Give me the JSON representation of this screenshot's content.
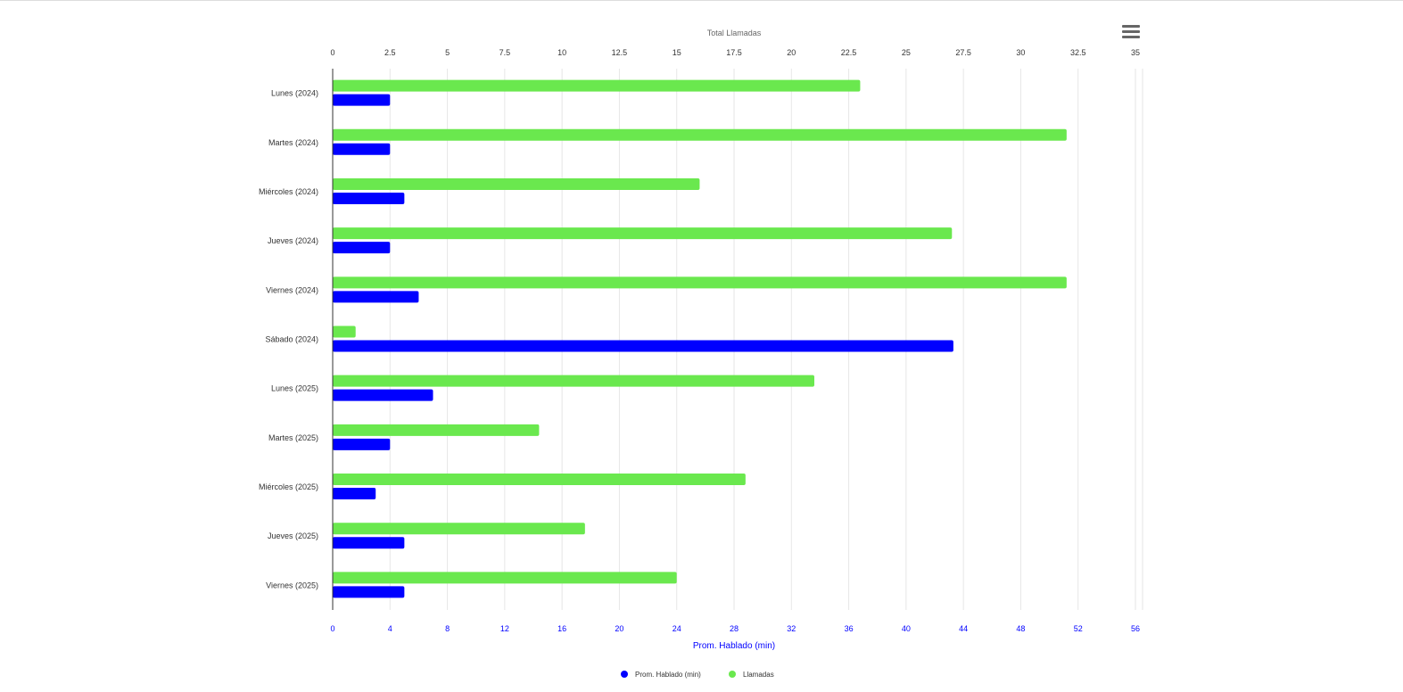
{
  "chart_data": {
    "type": "bar",
    "orientation": "horizontal",
    "categories": [
      "Lunes (2024)",
      "Martes (2024)",
      "Miércoles (2024)",
      "Jueves (2024)",
      "Viernes (2024)",
      "Sábado (2024)",
      "Lunes (2025)",
      "Martes (2025)",
      "Miércoles (2025)",
      "Jueves (2025)",
      "Viernes (2025)"
    ],
    "series": [
      {
        "name": "Llamadas",
        "axis": "top",
        "color": "#6ae84e",
        "values": [
          23,
          32,
          16,
          27,
          32,
          1,
          21,
          9,
          18,
          11,
          15
        ]
      },
      {
        "name": "Prom. Hablado (min)",
        "axis": "bottom",
        "color": "#0000ff",
        "values": [
          4,
          4,
          5,
          4,
          6,
          43.3,
          7,
          4,
          3,
          5,
          5
        ]
      }
    ],
    "top_axis": {
      "title": "Total Llamadas",
      "range": [
        0,
        35
      ],
      "ticks": [
        "0",
        "2.5",
        "5",
        "7.5",
        "10",
        "12.5",
        "15",
        "17.5",
        "20",
        "22.5",
        "25",
        "27.5",
        "30",
        "32.5",
        "35"
      ]
    },
    "bottom_axis": {
      "title": "Prom. Hablado (min)",
      "range": [
        0,
        56
      ],
      "ticks": [
        "0",
        "4",
        "8",
        "12",
        "16",
        "20",
        "24",
        "28",
        "32",
        "36",
        "40",
        "44",
        "48",
        "52",
        "56"
      ],
      "color": "#0000ff"
    },
    "legend": {
      "placement": "bottom-center",
      "items": [
        "Prom. Hablado (min)",
        "Llamadas"
      ]
    },
    "grid": true
  }
}
